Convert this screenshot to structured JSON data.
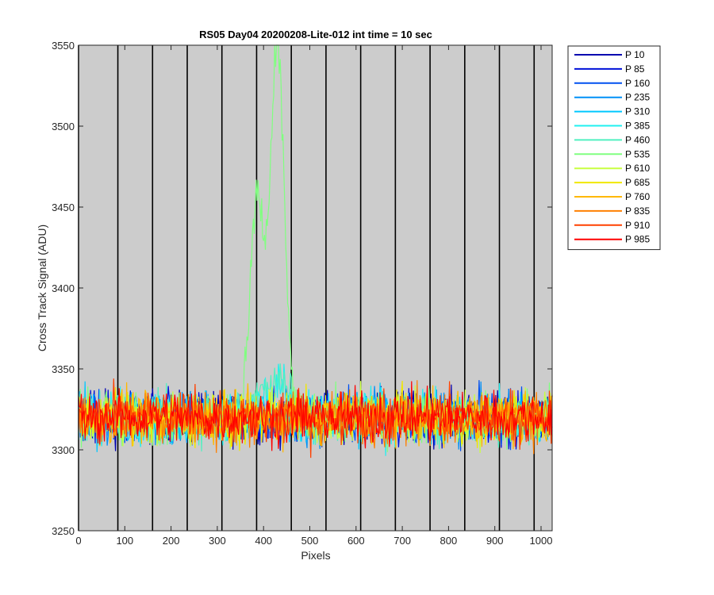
{
  "chart_data": {
    "type": "line",
    "title": "RS05 Day04 20200208-Lite-012 int time = 10 sec",
    "xlabel": "Pixels",
    "ylabel": "Cross Track Signal (ADU)",
    "xlim": [
      0,
      1024
    ],
    "ylim": [
      3250,
      3550
    ],
    "xticks": [
      0,
      100,
      200,
      300,
      400,
      500,
      600,
      700,
      800,
      900,
      1000
    ],
    "yticks": [
      3250,
      3300,
      3350,
      3400,
      3450,
      3500,
      3550
    ],
    "background": "#cccccc",
    "grid": false,
    "vertical_lines_x": [
      0,
      85,
      160,
      235,
      310,
      385,
      460,
      535,
      610,
      685,
      760,
      835,
      910,
      985
    ],
    "legend_position": "outside-right",
    "series": [
      {
        "name": "P 10",
        "color": "#0000b0",
        "mean": 3320,
        "noise": 8
      },
      {
        "name": "P 85",
        "color": "#0010d8",
        "mean": 3320,
        "noise": 8
      },
      {
        "name": "P 160",
        "color": "#0050f0",
        "mean": 3320,
        "noise": 8
      },
      {
        "name": "P 235",
        "color": "#0090f8",
        "mean": 3320,
        "noise": 8
      },
      {
        "name": "P 310",
        "color": "#00c8ff",
        "mean": 3320,
        "noise": 8
      },
      {
        "name": "P 385",
        "color": "#20f0f0",
        "mean": 3320,
        "noise": 8,
        "peaks": [
          {
            "x": 400,
            "value": 3335
          },
          {
            "x": 440,
            "value": 3340
          }
        ]
      },
      {
        "name": "P 460",
        "color": "#50f0c0",
        "mean": 3320,
        "noise": 8,
        "peaks": [
          {
            "x": 400,
            "value": 3345
          },
          {
            "x": 440,
            "value": 3350
          }
        ]
      },
      {
        "name": "P 535",
        "color": "#80ff80",
        "mean": 3320,
        "noise": 8,
        "peaks": [
          {
            "x": 385,
            "value": 3463
          },
          {
            "x": 420,
            "value": 3390
          },
          {
            "x": 433,
            "value": 3519
          }
        ]
      },
      {
        "name": "P 610",
        "color": "#c8ff40",
        "mean": 3320,
        "noise": 8
      },
      {
        "name": "P 685",
        "color": "#f0e800",
        "mean": 3320,
        "noise": 8
      },
      {
        "name": "P 760",
        "color": "#ffb800",
        "mean": 3320,
        "noise": 8
      },
      {
        "name": "P 835",
        "color": "#ff8000",
        "mean": 3320,
        "noise": 8
      },
      {
        "name": "P 910",
        "color": "#ff4000",
        "mean": 3320,
        "noise": 8
      },
      {
        "name": "P 985",
        "color": "#ff0000",
        "mean": 3320,
        "noise": 8
      }
    ]
  }
}
